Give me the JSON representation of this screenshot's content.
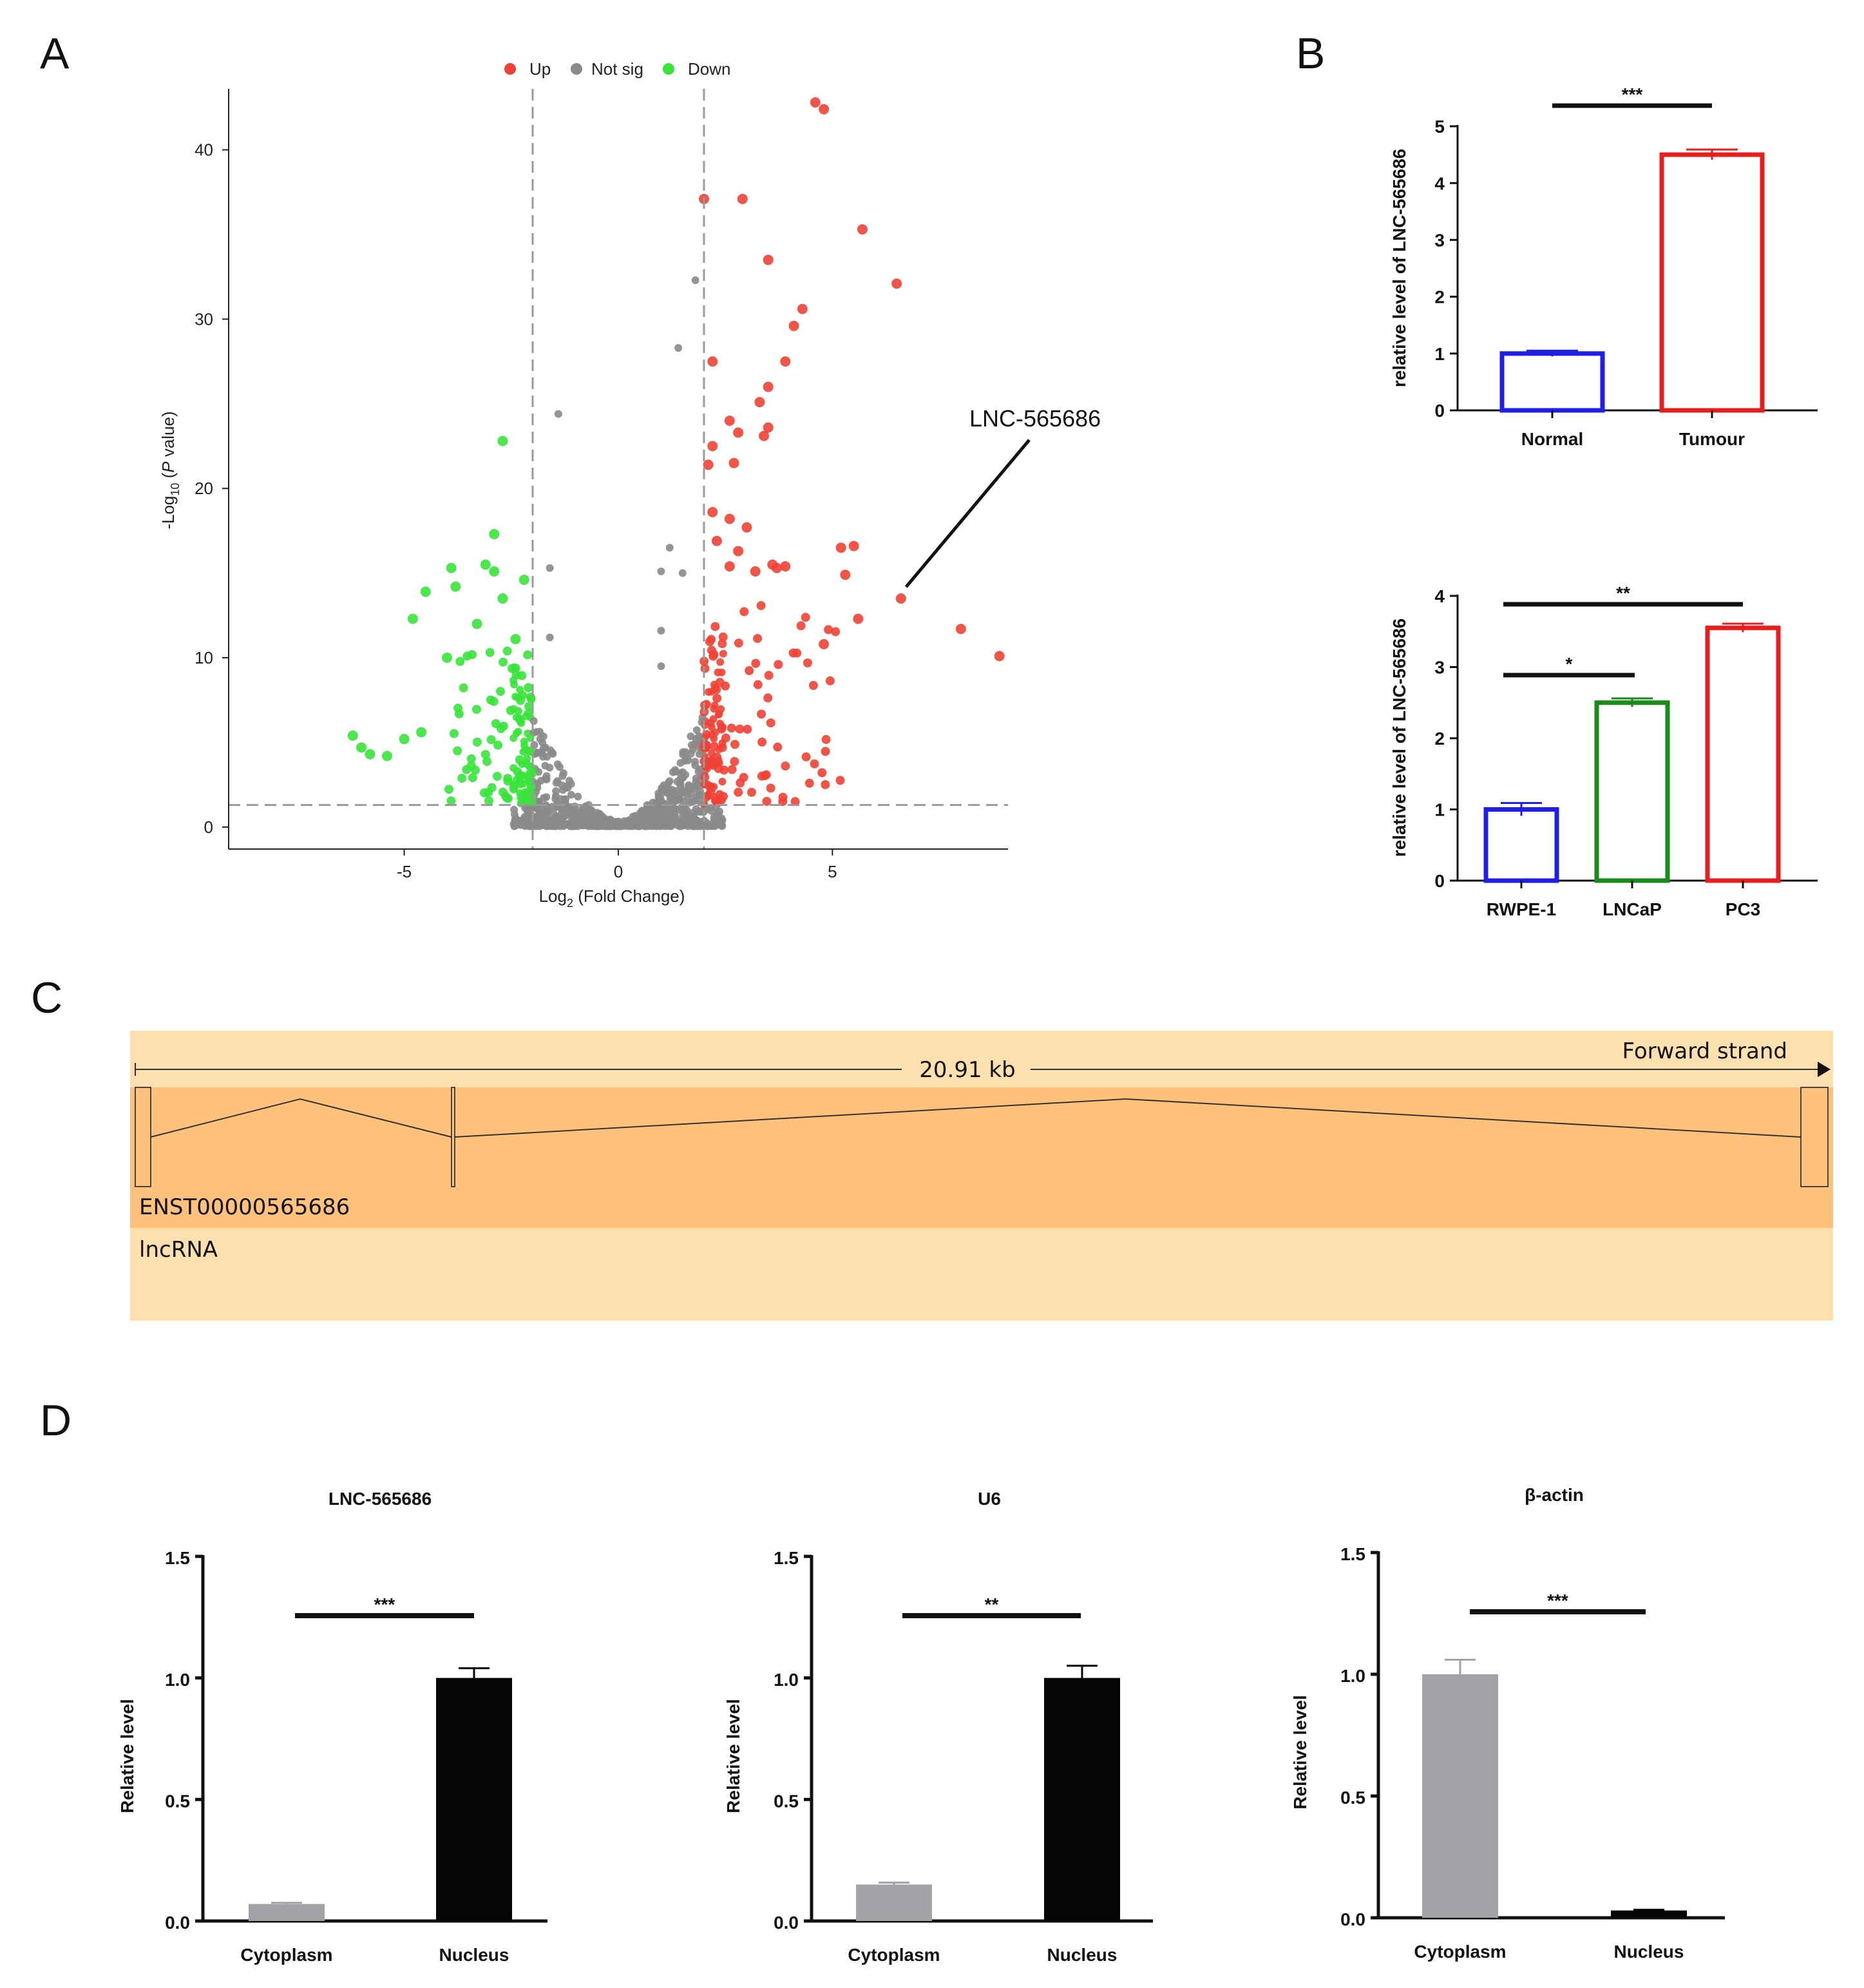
{
  "panels": {
    "a": "A",
    "b": "B",
    "c": "C",
    "d": "D"
  },
  "colors": {
    "up": "#f04134",
    "notsig": "#8a8a8a",
    "down": "#39e33b",
    "blue": "#1f1fe8",
    "green": "#1a8a1a",
    "red": "#e81e1e",
    "grey_bar": "#a3a3a7",
    "black_bar": "#050505",
    "track_light": "#fde0ad",
    "track_mid": "#ffc17c"
  },
  "chart_data": [
    {
      "id": "volcano",
      "type": "scatter",
      "legend": [
        "Up",
        "Not sig",
        "Down"
      ],
      "legend_position": "top-center",
      "xlabel_main": "Log",
      "xlabel_sub": "2",
      "xlabel_rest": " (Fold Change)",
      "ylabel_main": "-Log",
      "ylabel_sub": "10",
      "ylabel_paren_open": " (",
      "ylabel_italic": "P",
      "ylabel_rest": " value)",
      "xlim": [
        -9.1,
        9.1
      ],
      "ylim": [
        -1.3,
        43.6
      ],
      "x_ticks": [
        -5,
        0,
        5
      ],
      "y_ticks": [
        0,
        10,
        20,
        30,
        40
      ],
      "thresholds": {
        "log2fc": [
          -2,
          2
        ],
        "neg_log10_p": 1.3
      },
      "annotation": {
        "label": "LNC-565686",
        "point": [
          6.6,
          13.5
        ]
      },
      "series": [
        {
          "name": "Up",
          "points": [
            [
              4.6,
              42.8
            ],
            [
              4.8,
              42.4
            ],
            [
              2.0,
              37.1
            ],
            [
              2.9,
              37.1
            ],
            [
              5.7,
              35.3
            ],
            [
              3.5,
              33.5
            ],
            [
              6.5,
              32.1
            ],
            [
              4.3,
              30.6
            ],
            [
              4.1,
              29.6
            ],
            [
              3.9,
              27.5
            ],
            [
              2.2,
              27.5
            ],
            [
              3.3,
              25.1
            ],
            [
              3.5,
              26.0
            ],
            [
              2.6,
              24.0
            ],
            [
              2.8,
              23.3
            ],
            [
              3.5,
              23.6
            ],
            [
              3.4,
              23.1
            ],
            [
              2.2,
              22.5
            ],
            [
              2.7,
              21.5
            ],
            [
              2.1,
              21.4
            ],
            [
              2.2,
              18.6
            ],
            [
              2.6,
              18.2
            ],
            [
              3.0,
              17.7
            ],
            [
              5.5,
              16.6
            ],
            [
              5.2,
              16.5
            ],
            [
              3.9,
              15.4
            ],
            [
              2.8,
              16.3
            ],
            [
              3.6,
              15.5
            ],
            [
              2.3,
              16.9
            ],
            [
              2.6,
              15.4
            ],
            [
              3.2,
              15.1
            ],
            [
              3.7,
              15.3
            ],
            [
              6.6,
              13.5
            ],
            [
              5.3,
              14.9
            ],
            [
              8.0,
              11.7
            ],
            [
              8.9,
              10.1
            ],
            [
              4.8,
              10.8
            ],
            [
              5.6,
              12.3
            ]
          ]
        },
        {
          "name": "Not sig",
          "points": [
            [
              1.8,
              32.3
            ],
            [
              1.4,
              28.3
            ],
            [
              -1.4,
              24.4
            ],
            [
              -1.6,
              15.3
            ],
            [
              1.2,
              16.5
            ],
            [
              1.0,
              15.1
            ],
            [
              1.5,
              15.0
            ],
            [
              1.0,
              11.6
            ],
            [
              -1.6,
              11.2
            ],
            [
              1.0,
              9.5
            ]
          ]
        },
        {
          "name": "Down",
          "points": [
            [
              -2.7,
              22.8
            ],
            [
              -2.9,
              17.3
            ],
            [
              -3.9,
              15.3
            ],
            [
              -3.1,
              15.5
            ],
            [
              -2.9,
              15.1
            ],
            [
              -3.8,
              14.2
            ],
            [
              -2.2,
              14.6
            ],
            [
              -2.7,
              13.5
            ],
            [
              -4.5,
              13.9
            ],
            [
              -4.8,
              12.3
            ],
            [
              -3.3,
              12.0
            ],
            [
              -2.4,
              11.1
            ],
            [
              -4.0,
              10.0
            ],
            [
              -6.2,
              5.4
            ],
            [
              -6.0,
              4.7
            ],
            [
              -5.8,
              4.3
            ],
            [
              -5.4,
              4.2
            ],
            [
              -5.0,
              5.2
            ],
            [
              -4.6,
              5.6
            ]
          ]
        }
      ]
    },
    {
      "id": "b1",
      "type": "bar",
      "ylabel": "relative level of LNC-565686",
      "categories": [
        "Normal",
        "Tumour"
      ],
      "values": [
        1.0,
        4.5
      ],
      "errors": [
        0.05,
        0.09
      ],
      "ylim": [
        0,
        5
      ],
      "y_ticks": [
        0,
        1,
        2,
        3,
        4,
        5
      ],
      "significance": [
        {
          "from": 0,
          "to": 1,
          "label": "***"
        }
      ]
    },
    {
      "id": "b2",
      "type": "bar",
      "ylabel": "relative level of LNC-565686",
      "categories": [
        "RWPE-1",
        "LNCaP",
        "PC3"
      ],
      "values": [
        1.0,
        2.5,
        3.55
      ],
      "errors": [
        0.09,
        0.06,
        0.06
      ],
      "ylim": [
        0,
        4
      ],
      "y_ticks": [
        0,
        1,
        2,
        3,
        4
      ],
      "significance": [
        {
          "from": 0,
          "to": 1,
          "label": "*"
        },
        {
          "from": 0,
          "to": 2,
          "label": "**"
        }
      ]
    },
    {
      "id": "d1",
      "type": "bar",
      "title": "LNC-565686",
      "ylabel": "Relative level",
      "categories": [
        "Cytoplasm",
        "Nucleus"
      ],
      "values": [
        0.07,
        1.0
      ],
      "errors": [
        0.005,
        0.04
      ],
      "ylim": [
        0,
        1.5
      ],
      "y_ticks": [
        "0.0",
        "0.5",
        "1.0",
        "1.5"
      ],
      "significance": [
        {
          "from": 0,
          "to": 1,
          "label": "***"
        }
      ]
    },
    {
      "id": "d2",
      "type": "bar",
      "title": "U6",
      "ylabel": "Relative level",
      "categories": [
        "Cytoplasm",
        "Nucleus"
      ],
      "values": [
        0.15,
        1.0
      ],
      "errors": [
        0.008,
        0.05
      ],
      "ylim": [
        0,
        1.5
      ],
      "y_ticks": [
        "0.0",
        "0.5",
        "1.0",
        "1.5"
      ],
      "significance": [
        {
          "from": 0,
          "to": 1,
          "label": "**"
        }
      ]
    },
    {
      "id": "d3",
      "type": "bar",
      "title": "β-actin",
      "ylabel": "Relative level",
      "categories": [
        "Cytoplasm",
        "Nucleus"
      ],
      "values": [
        1.0,
        0.03
      ],
      "errors": [
        0.06,
        0.003
      ],
      "ylim": [
        0,
        1.5
      ],
      "y_ticks": [
        "0.0",
        "0.5",
        "1.0",
        "1.5"
      ],
      "significance": [
        {
          "from": 0,
          "to": 1,
          "label": "***"
        }
      ]
    }
  ],
  "gene_track": {
    "length": "20.91 kb",
    "strand": "Forward strand",
    "transcript": "ENST00000565686",
    "biotype": "lncRNA"
  }
}
